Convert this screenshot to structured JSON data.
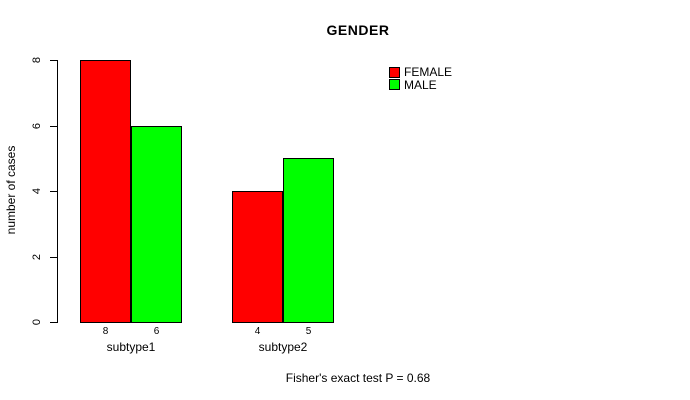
{
  "chart_data": {
    "type": "bar",
    "title": "GENDER",
    "ylabel": "number of cases",
    "xlabel": "",
    "categories": [
      "subtype1",
      "subtype2"
    ],
    "series": [
      {
        "name": "FEMALE",
        "color": "#ff0000",
        "values": [
          8,
          4
        ]
      },
      {
        "name": "MALE",
        "color": "#00ff00",
        "values": [
          6,
          5
        ]
      }
    ],
    "bar_value_labels": {
      "FEMALE": [
        "8",
        "4"
      ],
      "MALE": [
        "6",
        "5"
      ]
    },
    "yticks": [
      "0",
      "2",
      "4",
      "6",
      "8"
    ],
    "ylim": [
      0,
      8
    ],
    "grid": false,
    "legend_position": "top-right",
    "annotation": "Fisher's exact test P = 0.68",
    "colors": {
      "background": "#ffffff",
      "axis": "#000000",
      "text": "#000000",
      "female": "#ff0000",
      "male": "#00ff00"
    }
  }
}
